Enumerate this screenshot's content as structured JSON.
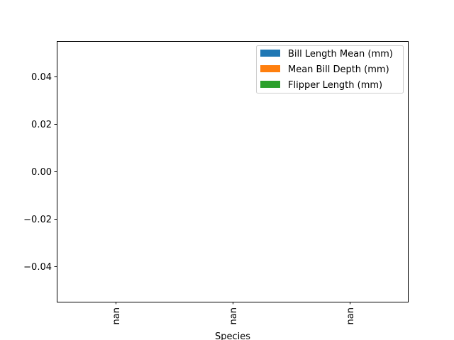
{
  "chart_data": {
    "type": "bar",
    "categories": [
      "nan",
      "nan",
      "nan"
    ],
    "series": [
      {
        "name": "Bill Length Mean (mm)",
        "color": "#1f77b4",
        "values": [
          null,
          null,
          null
        ]
      },
      {
        "name": "Mean Bill Depth (mm)",
        "color": "#ff7f0e",
        "values": [
          null,
          null,
          null
        ]
      },
      {
        "name": "Flipper Length (mm)",
        "color": "#2ca02c",
        "values": [
          null,
          null,
          null
        ]
      }
    ],
    "title": "",
    "xlabel": "Species",
    "ylabel": "",
    "ylim": [
      -0.055,
      0.055
    ],
    "yticks": [
      -0.04,
      -0.02,
      0.0,
      0.02,
      0.04
    ],
    "ytick_labels": [
      "−0.04",
      "−0.02",
      "0.00",
      "0.02",
      "0.04"
    ],
    "grid": false,
    "legend_position": "top-right"
  }
}
